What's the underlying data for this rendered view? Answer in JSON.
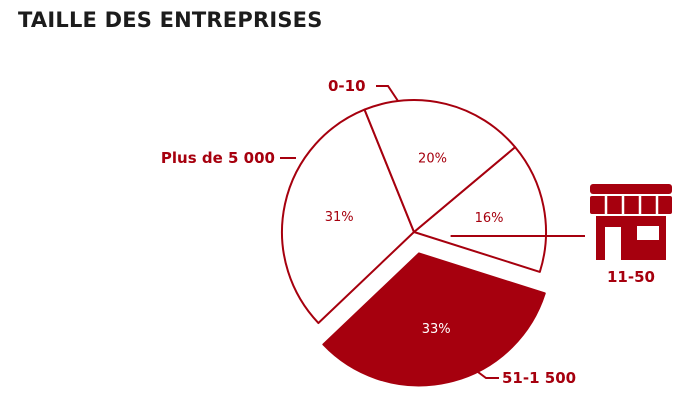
{
  "colors": {
    "accent": "#a6000e",
    "outline": "#a6000e",
    "background": "#ffffff",
    "title": "#1c1c1c"
  },
  "chart_data": {
    "type": "pie",
    "title": "TAILLE DES ENTREPRISES",
    "start_angle_deg": 50,
    "direction": "clockwise",
    "slices": [
      {
        "label": "0-10",
        "value": 16,
        "value_label": "16%",
        "highlighted": false
      },
      {
        "label": "11-50",
        "value": 33,
        "value_label": "33%",
        "highlighted": true,
        "icon": "storefront-icon"
      },
      {
        "label": "51-1 500",
        "value": 31,
        "value_label": "31%",
        "highlighted": false
      },
      {
        "label": "Plus de 5 000",
        "value": 20,
        "value_label": "20%",
        "highlighted": false
      }
    ]
  }
}
